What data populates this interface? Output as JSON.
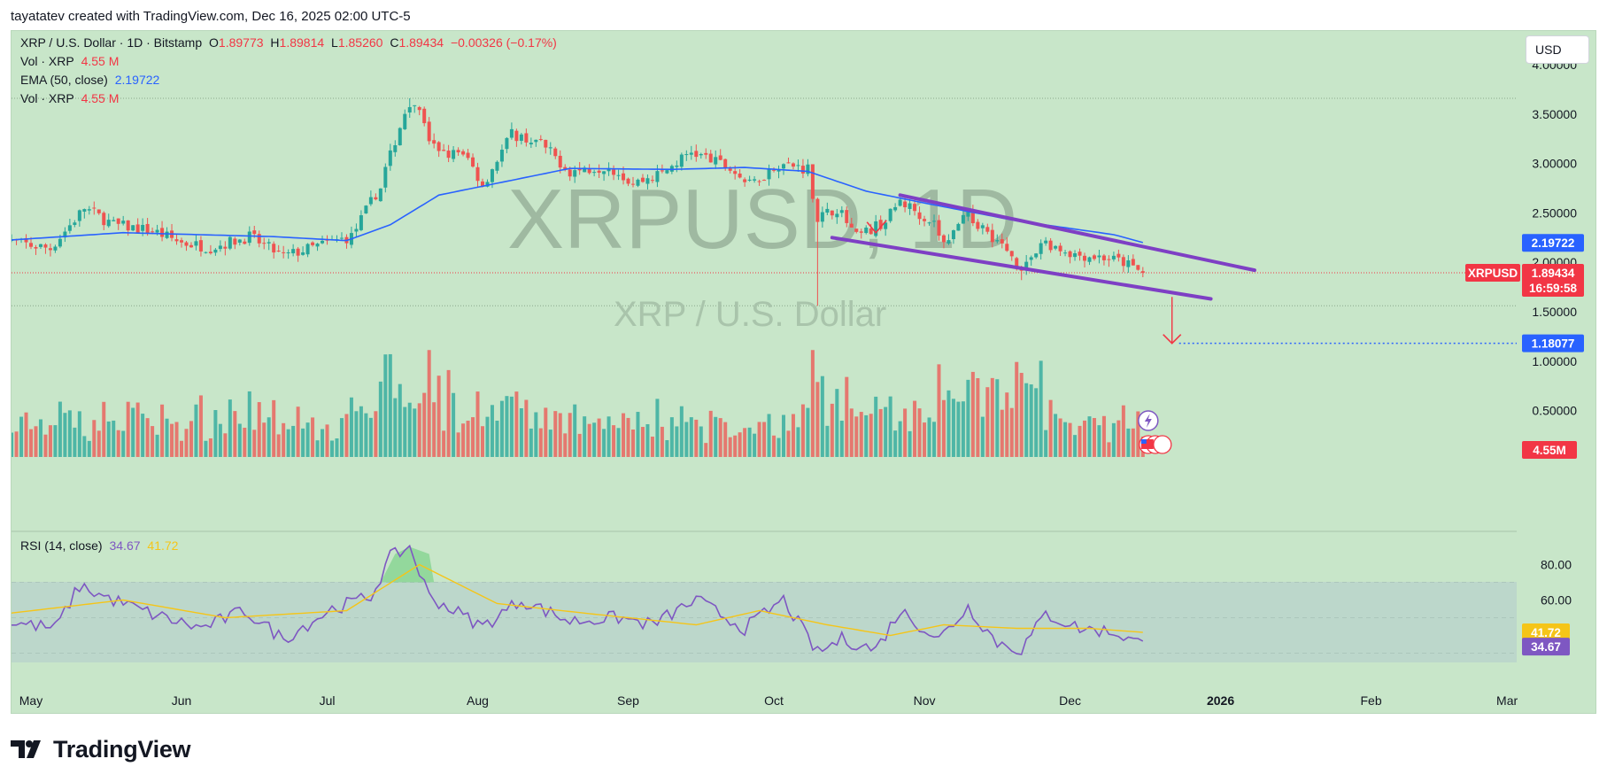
{
  "header": {
    "credit": "tayatatev created with TradingView.com, Dec 16, 2025 02:00 UTC-5"
  },
  "legend": {
    "symbol_line": "XRP / U.S. Dollar · 1D · Bitstamp",
    "o_label": "O",
    "o_value": "1.89773",
    "h_label": "H",
    "h_value": "1.89814",
    "l_label": "L",
    "l_value": "1.85260",
    "c_label": "C",
    "c_value": "1.89434",
    "change": "−0.00326 (−0.17%)",
    "vol1_label": "Vol · XRP",
    "vol1_value": "4.55 M",
    "ema_label": "EMA (50, close)",
    "ema_value": "2.19722",
    "vol2_label": "Vol · XRP",
    "vol2_value": "4.55 M",
    "rsi_label": "RSI (14, close)",
    "rsi_value": "34.67",
    "rsi_ma_value": "41.72"
  },
  "currency_button": "USD",
  "watermark": {
    "ticker": "XRPUSD, 1D",
    "name": "XRP / U.S. Dollar"
  },
  "price_badges": {
    "symbol": "XRPUSD",
    "last": "1.89434",
    "countdown": "16:59:58",
    "ema": "2.19722",
    "target": "1.18077",
    "volume": "4.55M",
    "rsi_ma": "41.72",
    "rsi": "34.67"
  },
  "footer": {
    "brand": "TradingView"
  },
  "colors": {
    "background": "#c8e6c9",
    "up": "#26a69a",
    "down": "#ef5350",
    "ema": "#2962ff",
    "channel": "#7e3fc4",
    "rsi": "#7e57c2",
    "rsi_ma": "#f5c518",
    "target": "#2962ff"
  },
  "chart_data": {
    "type": "candlestick",
    "symbol": "XRPUSD",
    "timeframe": "1D",
    "x_ticks": [
      "May",
      "Jun",
      "Jul",
      "Aug",
      "Sep",
      "Oct",
      "Nov",
      "Dec",
      "2026",
      "Feb",
      "Mar"
    ],
    "y_ticks": [
      "4.00000",
      "3.50000",
      "3.00000",
      "2.50000",
      "2.00000",
      "1.50000",
      "1.00000",
      "0.50000"
    ],
    "ylim": [
      0.5,
      4.0
    ],
    "rsi_ticks": [
      "80.00",
      "60.00"
    ],
    "rsi_levels": [
      70,
      50,
      30
    ],
    "last_price": 1.89434,
    "ema_value": 2.19722,
    "target_price": 1.18077,
    "price_path": [
      [
        "2025-04-25",
        2.22
      ],
      [
        "2025-05-05",
        2.14
      ],
      [
        "2025-05-12",
        2.55
      ],
      [
        "2025-05-18",
        2.38
      ],
      [
        "2025-05-26",
        2.32
      ],
      [
        "2025-06-01",
        2.2
      ],
      [
        "2025-06-07",
        2.15
      ],
      [
        "2025-06-15",
        2.26
      ],
      [
        "2025-06-22",
        2.06
      ],
      [
        "2025-06-30",
        2.18
      ],
      [
        "2025-07-06",
        2.26
      ],
      [
        "2025-07-12",
        2.78
      ],
      [
        "2025-07-17",
        3.52
      ],
      [
        "2025-07-20",
        3.55
      ],
      [
        "2025-07-22",
        3.18
      ],
      [
        "2025-07-30",
        3.05
      ],
      [
        "2025-08-02",
        2.78
      ],
      [
        "2025-08-08",
        3.3
      ],
      [
        "2025-08-14",
        3.2
      ],
      [
        "2025-08-20",
        2.92
      ],
      [
        "2025-08-28",
        2.98
      ],
      [
        "2025-09-02",
        2.8
      ],
      [
        "2025-09-08",
        2.9
      ],
      [
        "2025-09-14",
        3.12
      ],
      [
        "2025-09-22",
        2.95
      ],
      [
        "2025-09-26",
        2.78
      ],
      [
        "2025-10-02",
        3.0
      ],
      [
        "2025-10-08",
        2.95
      ],
      [
        "2025-10-10",
        2.45
      ],
      [
        "2025-10-14",
        2.55
      ],
      [
        "2025-10-18",
        2.25
      ],
      [
        "2025-10-24",
        2.42
      ],
      [
        "2025-10-27",
        2.62
      ],
      [
        "2025-11-03",
        2.4
      ],
      [
        "2025-11-05",
        2.18
      ],
      [
        "2025-11-10",
        2.48
      ],
      [
        "2025-11-16",
        2.22
      ],
      [
        "2025-11-21",
        1.95
      ],
      [
        "2025-11-26",
        2.2
      ],
      [
        "2025-12-02",
        2.08
      ],
      [
        "2025-12-08",
        2.05
      ],
      [
        "2025-12-12",
        2.0
      ],
      [
        "2025-12-16",
        1.89
      ]
    ],
    "ema_path": [
      [
        "2025-04-25",
        2.22
      ],
      [
        "2025-05-20",
        2.3
      ],
      [
        "2025-06-20",
        2.26
      ],
      [
        "2025-07-05",
        2.22
      ],
      [
        "2025-07-14",
        2.38
      ],
      [
        "2025-07-24",
        2.68
      ],
      [
        "2025-08-05",
        2.8
      ],
      [
        "2025-08-20",
        2.95
      ],
      [
        "2025-09-10",
        2.94
      ],
      [
        "2025-09-25",
        2.96
      ],
      [
        "2025-10-08",
        2.92
      ],
      [
        "2025-10-20",
        2.72
      ],
      [
        "2025-11-01",
        2.6
      ],
      [
        "2025-11-20",
        2.42
      ],
      [
        "2025-12-10",
        2.28
      ],
      [
        "2025-12-16",
        2.2
      ]
    ],
    "channel_upper": [
      [
        "2025-10-27",
        2.68
      ],
      [
        "2026-01-08",
        1.92
      ]
    ],
    "channel_lower": [
      [
        "2025-10-13",
        2.25
      ],
      [
        "2025-12-30",
        1.63
      ]
    ],
    "target_arrow": [
      [
        "2025-12-22",
        1.65
      ],
      [
        "2025-12-22",
        1.18
      ]
    ],
    "volume_ylim": [
      0,
      1.2
    ],
    "rsi_path": [
      [
        "2025-04-25",
        48
      ],
      [
        "2025-05-06",
        44
      ],
      [
        "2025-05-11",
        68
      ],
      [
        "2025-05-16",
        62
      ],
      [
        "2025-05-26",
        52
      ],
      [
        "2025-06-05",
        44
      ],
      [
        "2025-06-14",
        54
      ],
      [
        "2025-06-22",
        38
      ],
      [
        "2025-07-02",
        55
      ],
      [
        "2025-07-10",
        62
      ],
      [
        "2025-07-14",
        84
      ],
      [
        "2025-07-18",
        90
      ],
      [
        "2025-07-22",
        62
      ],
      [
        "2025-08-02",
        45
      ],
      [
        "2025-08-10",
        60
      ],
      [
        "2025-08-20",
        48
      ],
      [
        "2025-08-30",
        50
      ],
      [
        "2025-09-06",
        46
      ],
      [
        "2025-09-15",
        60
      ],
      [
        "2025-09-25",
        44
      ],
      [
        "2025-10-03",
        60
      ],
      [
        "2025-10-10",
        30
      ],
      [
        "2025-10-15",
        38
      ],
      [
        "2025-10-22",
        32
      ],
      [
        "2025-10-27",
        54
      ],
      [
        "2025-11-04",
        38
      ],
      [
        "2025-11-10",
        56
      ],
      [
        "2025-11-16",
        36
      ],
      [
        "2025-11-21",
        32
      ],
      [
        "2025-11-26",
        52
      ],
      [
        "2025-12-03",
        44
      ],
      [
        "2025-12-10",
        42
      ],
      [
        "2025-12-16",
        34.67
      ]
    ],
    "rsi_ma_path": [
      [
        "2025-04-25",
        52
      ],
      [
        "2025-05-20",
        60
      ],
      [
        "2025-06-10",
        50
      ],
      [
        "2025-07-05",
        54
      ],
      [
        "2025-07-20",
        80
      ],
      [
        "2025-08-05",
        58
      ],
      [
        "2025-08-25",
        52
      ],
      [
        "2025-09-15",
        46
      ],
      [
        "2025-09-28",
        54
      ],
      [
        "2025-10-12",
        46
      ],
      [
        "2025-10-25",
        40
      ],
      [
        "2025-11-05",
        46
      ],
      [
        "2025-11-20",
        44
      ],
      [
        "2025-12-05",
        44
      ],
      [
        "2025-12-16",
        41.72
      ]
    ]
  }
}
